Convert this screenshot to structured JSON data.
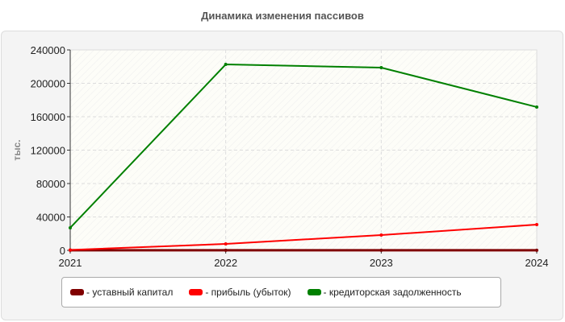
{
  "chart_data": {
    "type": "line",
    "title": "Динамика изменения пассивов",
    "ylabel": "тыс.",
    "xlabel": "",
    "categories": [
      "2021",
      "2022",
      "2023",
      "2024"
    ],
    "ylim": [
      0,
      240000
    ],
    "yticks": [
      0,
      40000,
      80000,
      120000,
      160000,
      200000,
      240000
    ],
    "grid": true,
    "legend_position": "bottom",
    "series": [
      {
        "name": "- уставный капитал",
        "color": "#800000",
        "values": [
          100,
          100,
          100,
          100
        ]
      },
      {
        "name": "- прибыль (убыток)",
        "color": "#ff0000",
        "values": [
          500,
          7700,
          18300,
          30800
        ]
      },
      {
        "name": "- кредиторская задолженность",
        "color": "#008000",
        "values": [
          27000,
          222600,
          218800,
          171600
        ]
      }
    ]
  }
}
